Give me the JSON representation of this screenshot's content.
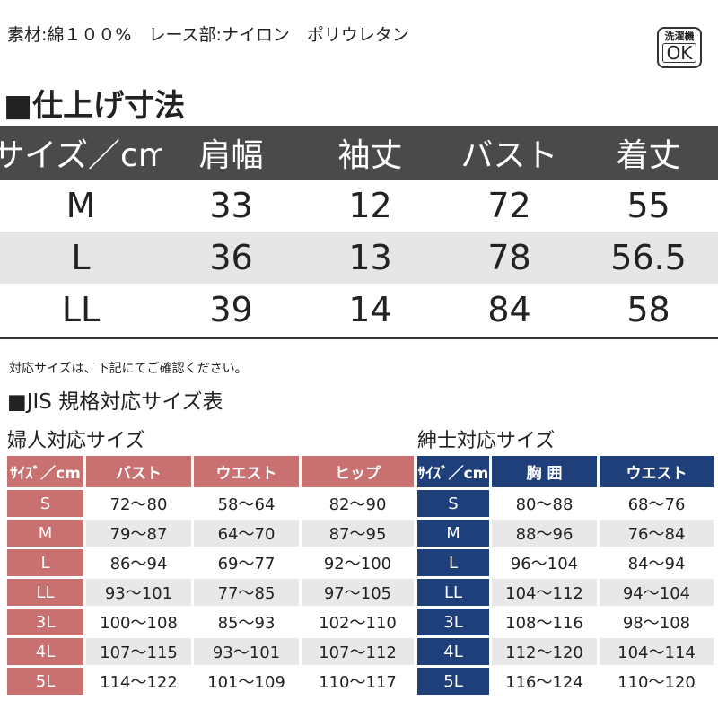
{
  "material": "素材:綿１００%　レース部:ナイロン　ポリウレタン",
  "badge": {
    "line1": "洗濯機",
    "line2": "OK"
  },
  "finished": {
    "title": "■仕上げ寸法",
    "header": [
      "サイズ／cm",
      "肩幅",
      "袖丈",
      "バスト",
      "着丈"
    ],
    "rows": [
      [
        "M",
        "33",
        "12",
        "72",
        "55"
      ],
      [
        "L",
        "36",
        "13",
        "78",
        "56.5"
      ],
      [
        "LL",
        "39",
        "14",
        "84",
        "58"
      ]
    ]
  },
  "note": "対応サイズは、下記にてご確認ください。",
  "jis_title": "■JIS 規格対応サイズ表",
  "women": {
    "title": "婦人対応サイズ",
    "header": [
      "ｻｲｽﾞ／cm",
      "バスト",
      "ウエスト",
      "ヒップ"
    ],
    "rows": [
      [
        "S",
        "72～80",
        "58～64",
        "82～90"
      ],
      [
        "M",
        "79～87",
        "64～70",
        "87～95"
      ],
      [
        "L",
        "86～94",
        "69～77",
        "92～100"
      ],
      [
        "LL",
        "93～101",
        "77～85",
        "97～105"
      ],
      [
        "3L",
        "100～108",
        "85～93",
        "102～110"
      ],
      [
        "4L",
        "107～115",
        "93～101",
        "107～112"
      ],
      [
        "5L",
        "114～122",
        "101～109",
        "110～117"
      ]
    ]
  },
  "men": {
    "title": "紳士対応サイズ",
    "header": [
      "ｻｲｽﾞ／cm",
      "胸 囲",
      "ウエスト"
    ],
    "rows": [
      [
        "S",
        "80～88",
        "68～76"
      ],
      [
        "M",
        "88～96",
        "76～84"
      ],
      [
        "L",
        "96～104",
        "84～94"
      ],
      [
        "LL",
        "104～112",
        "94～104"
      ],
      [
        "3L",
        "108～116",
        "98～108"
      ],
      [
        "4L",
        "112～120",
        "104～114"
      ],
      [
        "5L",
        "116～124",
        "110～120"
      ]
    ]
  }
}
